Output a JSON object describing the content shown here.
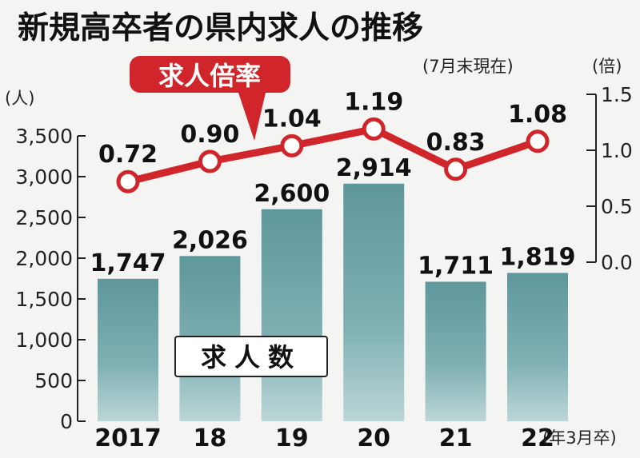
{
  "chart_data": {
    "type": "bar+line",
    "title": "新規高卒者の県内求人の推移",
    "subtitle": "(7月末現在)",
    "categories": [
      "2017",
      "18",
      "19",
      "20",
      "21",
      "22"
    ],
    "xlabel_unit": "(年3月卒)",
    "series": [
      {
        "name": "求人数",
        "type": "bar",
        "axis": "left",
        "values": [
          1747,
          2026,
          2600,
          2914,
          1711,
          1819
        ],
        "labels": [
          "1,747",
          "2,026",
          "2,600",
          "2,914",
          "1,711",
          "1,819"
        ],
        "color": "#6a9fa3"
      },
      {
        "name": "求人倍率",
        "type": "line",
        "axis": "right",
        "values": [
          0.72,
          0.9,
          1.04,
          1.19,
          0.83,
          1.08
        ],
        "labels": [
          "0.72",
          "0.90",
          "1.04",
          "1.19",
          "0.83",
          "1.08"
        ],
        "color": "#d0262b"
      }
    ],
    "left_axis": {
      "unit": "(人)",
      "ylim": [
        0,
        3500
      ],
      "ticks": [
        "0",
        "500",
        "1,000",
        "1,500",
        "2,000",
        "2,500",
        "3,000",
        "3,500"
      ]
    },
    "right_axis": {
      "unit": "(倍)",
      "ylim": [
        0,
        1.5
      ],
      "ticks": [
        "0.0",
        "0.5",
        "1.0",
        "1.5"
      ]
    },
    "grid": false
  }
}
